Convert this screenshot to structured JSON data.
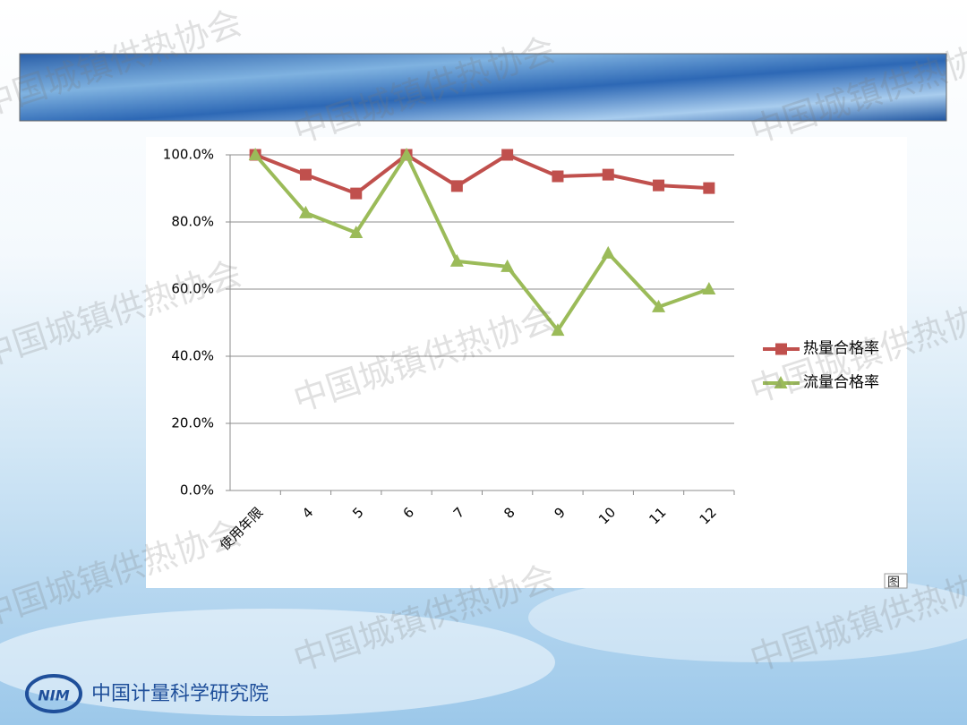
{
  "slide": {
    "watermark": "中国城镇供热协会",
    "footer": "中国计量科学研究院",
    "logo": "NIM",
    "corner_label": "图"
  },
  "chart_data": {
    "type": "line",
    "categories": [
      "使用年限",
      "4",
      "5",
      "6",
      "7",
      "8",
      "9",
      "10",
      "11",
      "12"
    ],
    "series": [
      {
        "name": "热量合格率",
        "color": "#c0504d",
        "marker": "square",
        "values": [
          100,
          94.1,
          88.5,
          100,
          90.7,
          100,
          93.6,
          94.1,
          90.9,
          90.1
        ]
      },
      {
        "name": "流量合格率",
        "color": "#9bbb59",
        "marker": "triangle",
        "values": [
          100,
          82.7,
          76.8,
          100,
          68.3,
          66.7,
          47.7,
          70.7,
          54.7,
          60.0
        ]
      }
    ],
    "ylim": [
      0,
      100
    ],
    "yticks": [
      {
        "value": 0,
        "label": "0.0%"
      },
      {
        "value": 20,
        "label": "20.0%"
      },
      {
        "value": 40,
        "label": "40.0%"
      },
      {
        "value": 60,
        "label": "60.0%"
      },
      {
        "value": 80,
        "label": "80.0%"
      },
      {
        "value": 100,
        "label": "100.0%"
      }
    ],
    "grid": true,
    "legend": "right"
  }
}
